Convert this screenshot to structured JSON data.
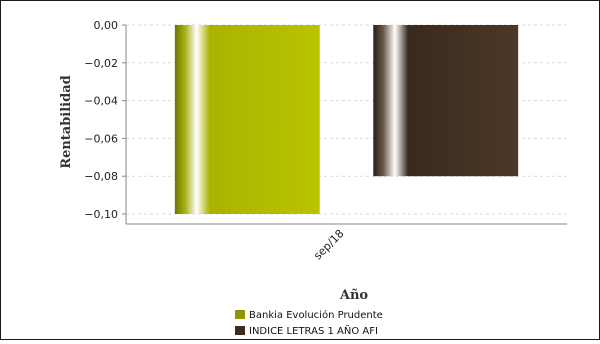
{
  "chart_data": {
    "type": "bar",
    "title": "",
    "xlabel": "Año",
    "ylabel": "Rentabilidad",
    "categories": [
      "sep/18"
    ],
    "ylim": [
      -0.1,
      0.0
    ],
    "yticks": [
      "0,00",
      "−0,02",
      "−0,04",
      "−0,06",
      "−0,08",
      "−0,10"
    ],
    "ytick_values": [
      0.0,
      -0.02,
      -0.04,
      -0.06,
      -0.08,
      -0.1
    ],
    "grid": true,
    "legend_position": "bottom",
    "series": [
      {
        "name": "Bankia Evolución Prudente",
        "values": [
          -0.1
        ],
        "color": "#a9b400"
      },
      {
        "name": "INDICE LETRAS 1 AÑO AFI",
        "values": [
          -0.08
        ],
        "color": "#3e2c20"
      }
    ]
  }
}
